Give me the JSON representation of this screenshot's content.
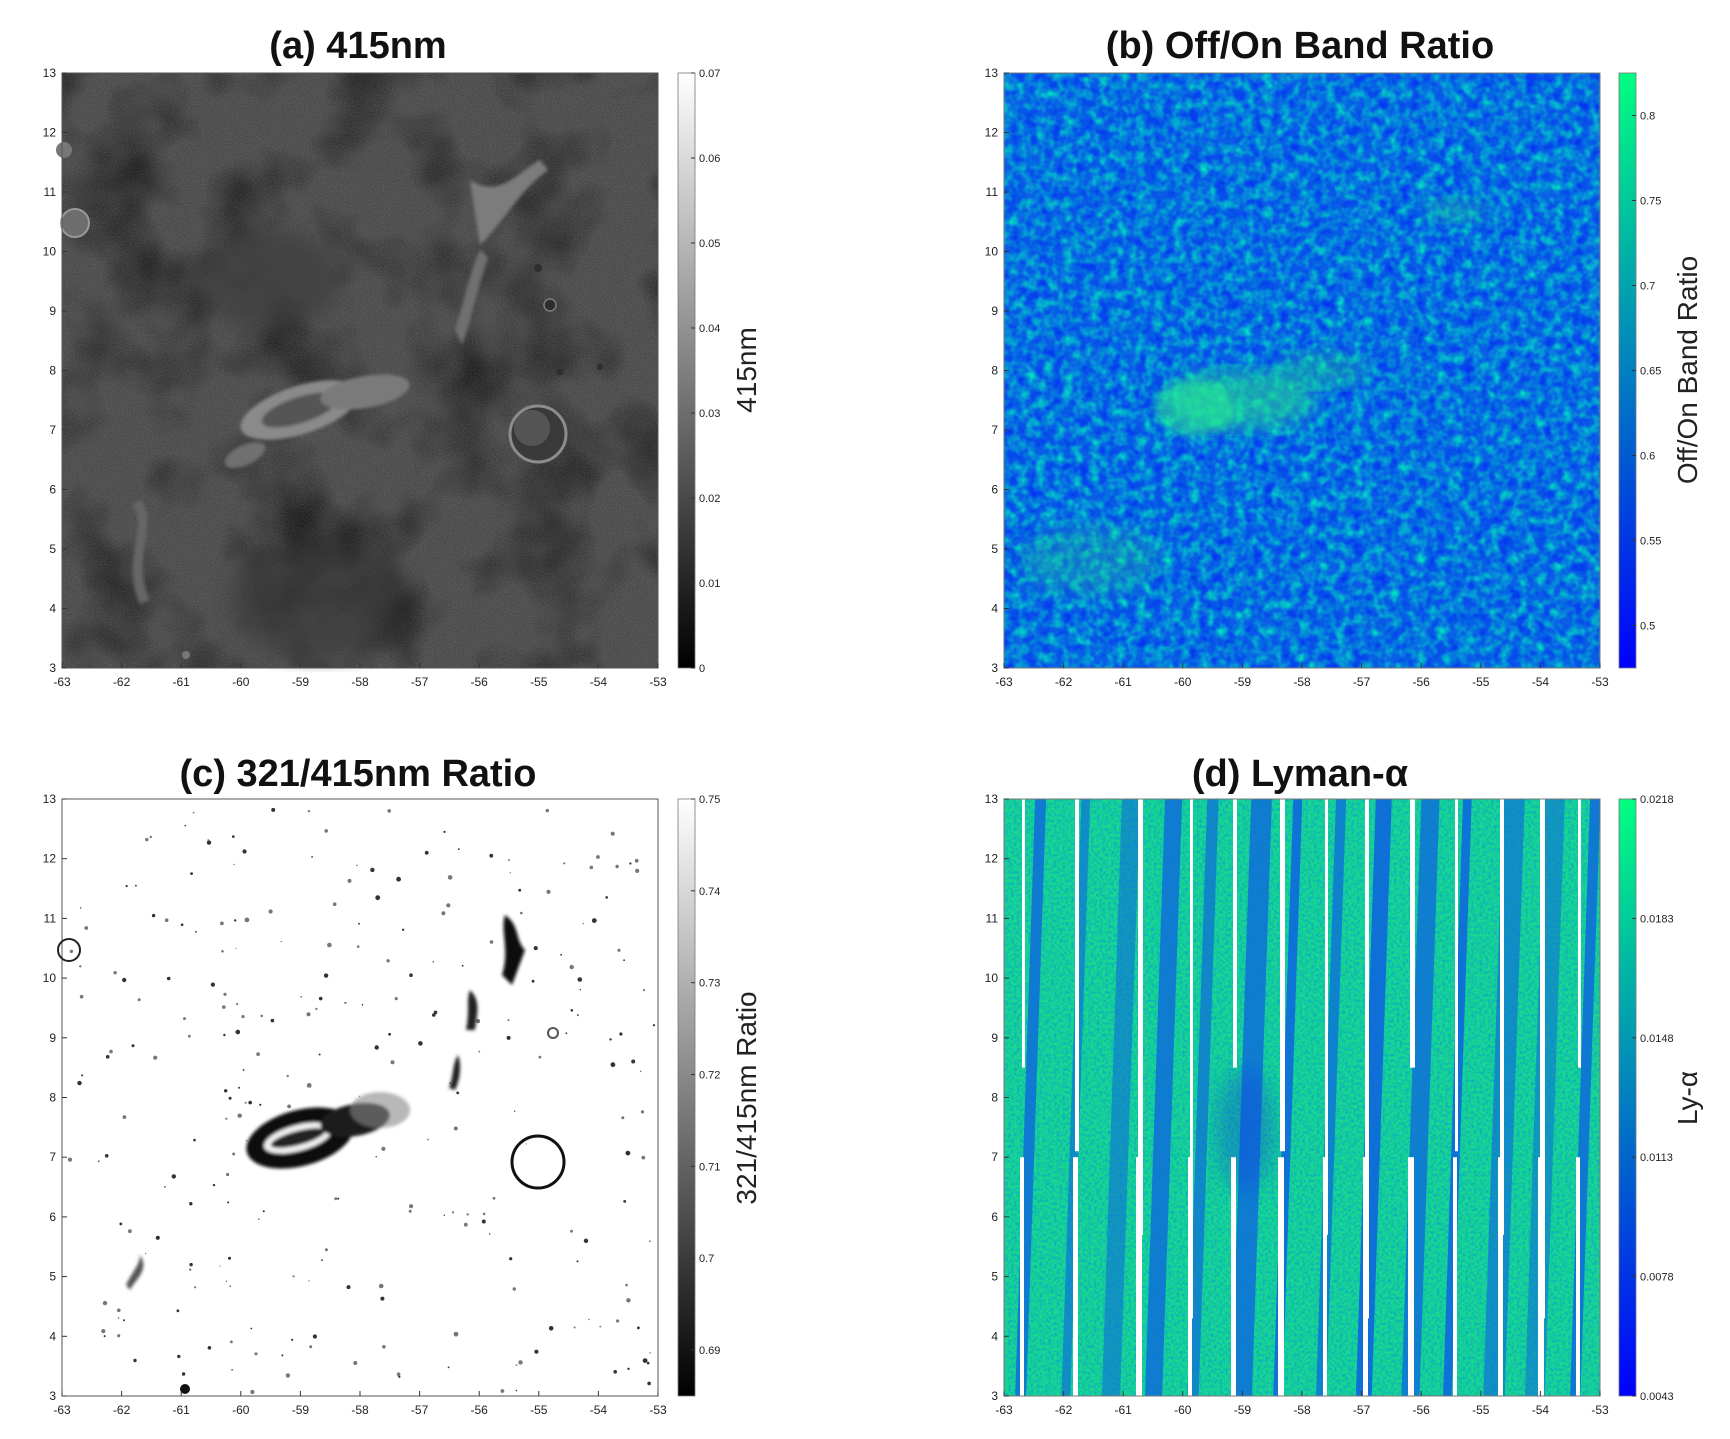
{
  "chart_data": [
    {
      "type": "heatmap",
      "title": "(a) 415nm",
      "xlim": [
        -63,
        -53
      ],
      "ylim": [
        3,
        13
      ],
      "x_ticks": [
        -63,
        -62,
        -61,
        -60,
        -59,
        -58,
        -57,
        -56,
        -55,
        -54,
        -53
      ],
      "y_ticks": [
        3,
        4,
        5,
        6,
        7,
        8,
        9,
        10,
        11,
        12,
        13
      ],
      "colormap": "gray",
      "colorbar": {
        "label": "415nm",
        "range": [
          0,
          0.07
        ],
        "ticks": [
          "0",
          "0.01",
          "0.02",
          "0.03",
          "0.04",
          "0.05",
          "0.06",
          "0.07"
        ]
      },
      "grid": false
    },
    {
      "type": "heatmap",
      "title": "(b) Off/On Band Ratio",
      "xlim": [
        -63,
        -53
      ],
      "ylim": [
        3,
        13
      ],
      "x_ticks": [
        -63,
        -62,
        -61,
        -60,
        -59,
        -58,
        -57,
        -56,
        -55,
        -54,
        -53
      ],
      "y_ticks": [
        3,
        4,
        5,
        6,
        7,
        8,
        9,
        10,
        11,
        12,
        13
      ],
      "colormap": "winter",
      "colorbar": {
        "label": "Off/On Band Ratio",
        "range": [
          0.475,
          0.825
        ],
        "ticks": [
          "0.5",
          "0.55",
          "0.6",
          "0.65",
          "0.7",
          "0.75",
          "0.8"
        ]
      },
      "grid": false
    },
    {
      "type": "heatmap",
      "title": "(c) 321/415nm Ratio",
      "xlim": [
        -63,
        -53
      ],
      "ylim": [
        3,
        13
      ],
      "x_ticks": [
        -63,
        -62,
        -61,
        -60,
        -59,
        -58,
        -57,
        -56,
        -55,
        -54,
        -53
      ],
      "y_ticks": [
        3,
        4,
        5,
        6,
        7,
        8,
        9,
        10,
        11,
        12,
        13
      ],
      "colormap": "gray",
      "colorbar": {
        "label": "321/415nm Ratio",
        "range": [
          0.685,
          0.75
        ],
        "ticks": [
          "0.69",
          "0.7",
          "0.71",
          "0.72",
          "0.73",
          "0.74",
          "0.75"
        ]
      },
      "grid": false
    },
    {
      "type": "heatmap",
      "title": "(d) Lyman-α",
      "xlim": [
        -63,
        -53
      ],
      "ylim": [
        3,
        13
      ],
      "x_ticks": [
        -63,
        -62,
        -61,
        -60,
        -59,
        -58,
        -57,
        -56,
        -55,
        -54,
        -53
      ],
      "y_ticks": [
        3,
        4,
        5,
        6,
        7,
        8,
        9,
        10,
        11,
        12,
        13
      ],
      "colormap": "winter",
      "colorbar": {
        "label": "Ly-α",
        "range": [
          0.0043,
          0.0218
        ],
        "ticks": [
          "0.0043",
          "0.0078",
          "0.0113",
          "0.0148",
          "0.0183",
          "0.0218"
        ]
      },
      "grid": false
    }
  ],
  "colors": {
    "winter_low": "#0000ff",
    "winter_high": "#00ff80",
    "gray_low": "#000000",
    "gray_high": "#ffffff"
  }
}
